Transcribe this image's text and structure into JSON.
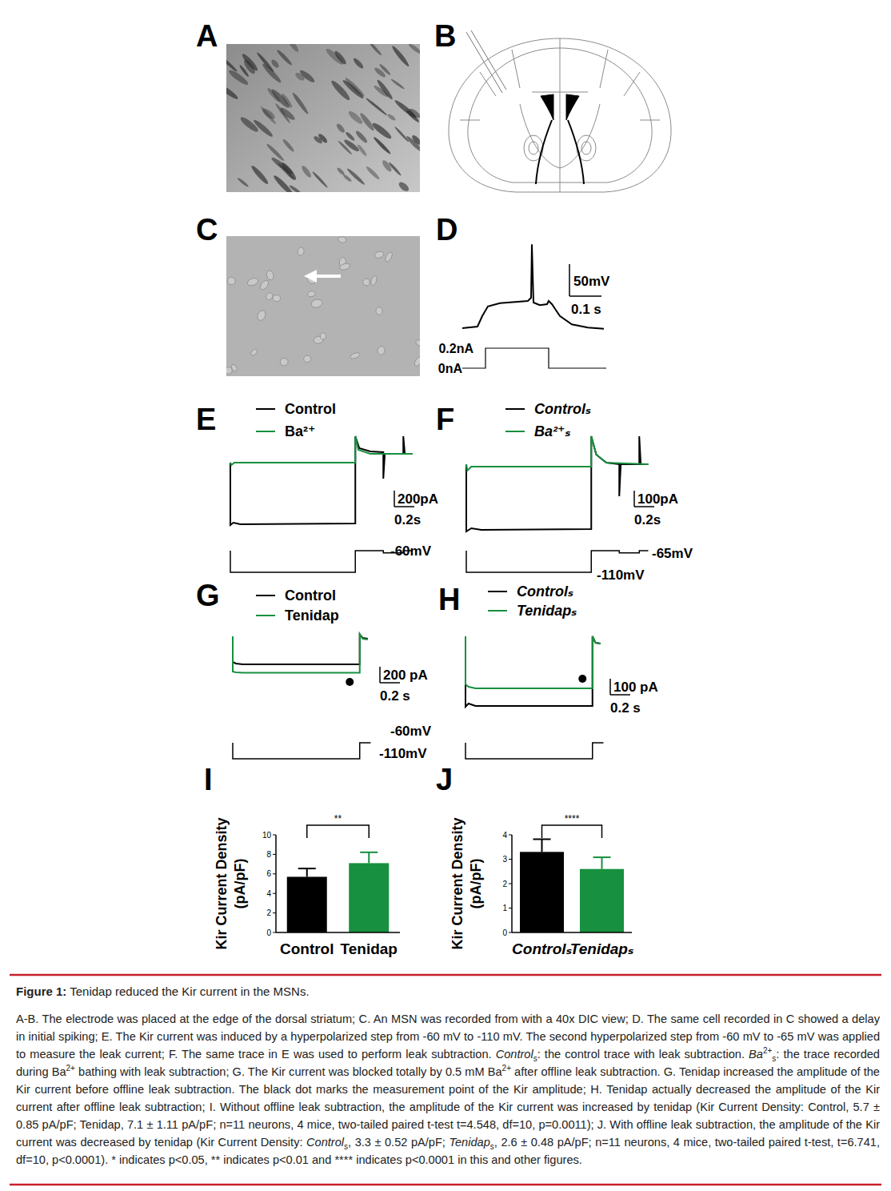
{
  "chart_data": [
    {
      "type": "bar",
      "title": "I",
      "ylabel": [
        "Kir Current Density",
        "(pA/pF)"
      ],
      "categories": [
        "Control",
        "Tenidap"
      ],
      "values": [
        5.7,
        7.1
      ],
      "errors": [
        0.85,
        1.11
      ],
      "colors": [
        "#000000",
        "#17903f"
      ],
      "ylim": [
        0,
        10
      ],
      "yticks": [
        0,
        2,
        4,
        6,
        8,
        10
      ],
      "annotations": [
        "**"
      ]
    },
    {
      "type": "bar",
      "title": "J",
      "ylabel": [
        "Kir Current Density",
        "(pA/pF)"
      ],
      "categories": [
        "Controlₛ",
        "Tenidapₛ"
      ],
      "values": [
        3.3,
        2.6
      ],
      "errors": [
        0.52,
        0.48
      ],
      "colors": [
        "#000000",
        "#17903f"
      ],
      "ylim": [
        0,
        4
      ],
      "yticks": [
        0,
        1,
        2,
        3,
        4
      ],
      "annotations": [
        "****"
      ]
    }
  ],
  "panels": {
    "A": {
      "label": "A"
    },
    "B": {
      "label": "B"
    },
    "C": {
      "label": "C"
    },
    "D": {
      "label": "D",
      "trace": {
        "t": [
          0,
          0.0475,
          0.0625,
          0.08,
          0.1175,
          0.205,
          0.215,
          0.2175,
          0.2225,
          0.2425,
          0.265,
          0.27,
          0.28,
          0.305,
          0.3425,
          0.3925,
          0.4425
        ],
        "v": [
          -80,
          -77.5,
          -61,
          -46,
          -41,
          -37.5,
          -32.5,
          51,
          -40,
          -44,
          -42.5,
          -37.5,
          -42.5,
          -61,
          -74,
          -79,
          -81
        ]
      },
      "scale_bar": {
        "voltage": 50,
        "voltage_label": "50mV",
        "time": 0.1,
        "time_label": "0.1 s"
      },
      "stimulus": {
        "t": [
          0,
          0.0725,
          0.0725,
          0.27,
          0.27,
          0.45
        ],
        "i": [
          0,
          0,
          0.2,
          0.2,
          0,
          0
        ],
        "levels": [
          {
            "value": 0.2,
            "label": "0.2nA"
          },
          {
            "value": 0,
            "label": "0nA"
          }
        ]
      }
    },
    "E": {
      "label": "E",
      "traces": [
        {
          "name": "Control",
          "color": "#000000",
          "t": [
            0,
            0,
            0.03,
            0.1,
            1.25,
            1.25,
            1.29,
            1.4,
            1.53,
            1.53,
            1.545,
            1.73,
            1.73,
            1.745,
            1.82
          ],
          "i": [
            0,
            -780,
            -750,
            -770,
            -760,
            330,
            180,
            140,
            130,
            -200,
            110,
            110,
            330,
            110,
            110
          ]
        },
        {
          "name": "Ba²⁺",
          "color": "#17903f",
          "t": [
            0,
            0.01,
            0.04,
            1.25,
            1.25,
            1.28,
            1.4,
            1.82
          ],
          "i": [
            0,
            -30,
            0,
            0,
            330,
            160,
            110,
            110
          ]
        }
      ],
      "scale_bar": {
        "current": 200,
        "current_label": "200pA",
        "time": 0.2,
        "time_label": "0.2s"
      },
      "protocol": {
        "t": [
          0,
          0,
          1.25,
          1.25,
          1.53,
          1.53,
          1.73,
          1.73,
          1.82
        ],
        "v": [
          -60,
          -110,
          -110,
          -60,
          -60,
          -65,
          -65,
          -60,
          -60
        ],
        "labels": [
          {
            "value": -60,
            "label": "-60mV"
          }
        ]
      }
    },
    "F": {
      "label": "F",
      "traces": [
        {
          "name": "Controlₛ",
          "color": "#000000",
          "t": [
            0,
            0,
            0.05,
            0.15,
            1.25,
            1.25,
            1.3,
            1.4,
            1.53,
            1.53,
            1.545,
            1.73,
            1.73,
            1.745,
            1.82
          ],
          "i": [
            0,
            -420,
            -400,
            -410,
            -405,
            175,
            60,
            10,
            0,
            -200,
            0,
            0,
            175,
            0,
            0
          ]
        },
        {
          "name": "Ba²⁺ₛ",
          "color": "#17903f",
          "t": [
            0,
            0.01,
            0.05,
            1.25,
            1.25,
            1.3,
            1.4,
            1.82
          ],
          "i": [
            0,
            -40,
            -15,
            -15,
            175,
            60,
            10,
            0
          ]
        }
      ],
      "scale_bar": {
        "current": 100,
        "current_label": "100pA",
        "time": 0.2,
        "time_label": "0.2s"
      },
      "protocol": {
        "t": [
          0,
          0,
          1.25,
          1.25,
          1.53,
          1.53,
          1.73,
          1.73,
          1.82
        ],
        "v": [
          -60,
          -110,
          -110,
          -60,
          -60,
          -65,
          -65,
          -60,
          -60
        ],
        "labels": [
          {
            "value": -65,
            "label": "-65mV"
          },
          {
            "value": -110,
            "label": "-110mV"
          }
        ]
      }
    },
    "G": {
      "label": "G",
      "traces": [
        {
          "name": "Control",
          "color": "#000000",
          "t": [
            0,
            0,
            0.03,
            0.1,
            1.27,
            1.27,
            1.3,
            1.35
          ],
          "i": [
            0,
            -320,
            -340,
            -350,
            -350,
            20,
            -20,
            -30
          ]
        },
        {
          "name": "Tenidap",
          "color": "#17903f",
          "t": [
            0,
            0,
            0.03,
            0.1,
            1.27,
            1.27,
            1.3,
            1.35
          ],
          "i": [
            0,
            -440,
            -450,
            -455,
            -455,
            30,
            -30,
            -40
          ]
        }
      ],
      "measurement_t": 1.17,
      "scale_bar": {
        "current": 200,
        "current_label": "200 pA",
        "time": 0.2,
        "time_label": "0.2 s"
      },
      "protocol": {
        "t": [
          0,
          0,
          1.27,
          1.27,
          1.38
        ],
        "v": [
          -60,
          -110,
          -110,
          -60,
          -60
        ],
        "labels": [
          {
            "value": -60,
            "label": "-60mV"
          },
          {
            "value": -110,
            "label": "-110mV"
          }
        ]
      }
    },
    "H": {
      "label": "H",
      "traces": [
        {
          "name": "Controlₛ",
          "color": "#000000",
          "t": [
            0,
            0,
            0.03,
            0.1,
            1.27,
            1.27,
            1.3,
            1.35
          ],
          "i": [
            0,
            -440,
            -420,
            -435,
            -435,
            0,
            -40,
            -45
          ]
        },
        {
          "name": "Tenidapₛ",
          "color": "#17903f",
          "t": [
            0,
            0,
            0.03,
            0.1,
            1.27,
            1.27,
            1.3,
            1.35
          ],
          "i": [
            0,
            -300,
            -315,
            -325,
            -325,
            0,
            -40,
            -45
          ]
        }
      ],
      "measurement_t": 1.17,
      "scale_bar": {
        "current": 100,
        "current_label": "100 pA",
        "time": 0.2,
        "time_label": "0.2 s"
      },
      "protocol": {
        "t": [
          0,
          0,
          1.27,
          1.27,
          1.38
        ],
        "v": [
          -60,
          -110,
          -110,
          -60,
          -60
        ]
      }
    },
    "I": {
      "label": "I"
    },
    "J": {
      "label": "J"
    }
  },
  "caption": {
    "figure_label": "Figure 1:",
    "title": "Tenidap reduced the Kir current in the MSNs.",
    "body": [
      {
        "text": "A-B. The electrode was placed at the edge of the dorsal striatum; C. An MSN was recorded from with a 40x DIC view; D. The same cell recorded in C showed a delay in initial spiking; E. The Kir current was induced by a hyperpolarized step from -60 mV to -110 mV. The second hyperpolarized step from -60 mV to -65 mV was applied to measure the leak current; F. The same trace in E was used to perform leak subtraction. "
      },
      {
        "text": "Control",
        "format": "italic"
      },
      {
        "text": "s",
        "format": "sub"
      },
      {
        "text": ": the control trace with leak subtraction. "
      },
      {
        "text": "Ba",
        "format": "italic"
      },
      {
        "text": "2+",
        "format": "sup"
      },
      {
        "text": "s",
        "format": "sub"
      },
      {
        "text": ": the trace recorded during Ba"
      },
      {
        "text": "2+",
        "format": "sup"
      },
      {
        "text": " bathing with leak subtraction; G. The Kir current was blocked totally by 0.5 mM Ba"
      },
      {
        "text": "2+",
        "format": "sup"
      },
      {
        "text": " after offline leak subtraction. G. Tenidap increased the amplitude of the Kir current before offline leak subtraction. The black dot marks the measurement point of the Kir amplitude; H. Tenidap actually decreased the amplitude of the Kir current after offline leak subtraction; I. Without offline leak subtraction, the amplitude of the Kir current was increased by tenidap (Kir Current Density: Control, 5.7 ± 0.85 pA/pF; Tenidap, 7.1 ± 1.11 pA/pF; n=11 neurons, 4 mice, two-tailed paired t-test t=4.548, df=10, p=0.0011); J. With offline leak subtraction, the amplitude of the Kir current was decreased by tenidap (Kir Current Density: "
      },
      {
        "text": "Control",
        "format": "italic"
      },
      {
        "text": "s",
        "format": "sub"
      },
      {
        "text": ", 3.3 ± 0.52 pA/pF; "
      },
      {
        "text": "Tenidap",
        "format": "italic"
      },
      {
        "text": "s",
        "format": "sub"
      },
      {
        "text": ", 2.6 ± 0.48 pA/pF; n=11 neurons, 4 mice, two-tailed paired t-test, t=6.741, df=10, p<0.0001). * indicates p<0.05, ** indicates p<0.01 and **** indicates p<0.0001 in this and other figures."
      }
    ]
  }
}
